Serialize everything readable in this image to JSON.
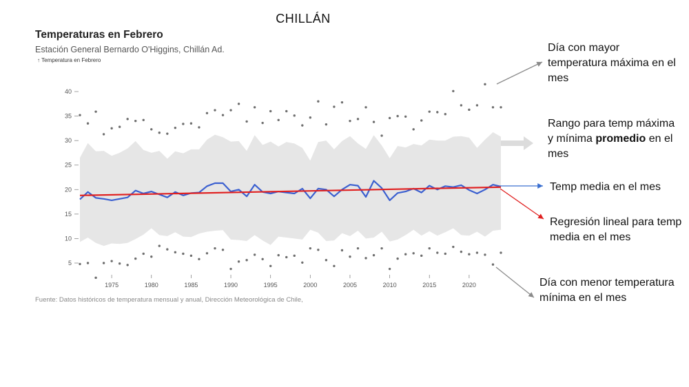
{
  "page": {
    "title": "CHILLÁN"
  },
  "chart_data": {
    "type": "line",
    "title": "Temperaturas en Febrero",
    "subtitle": "Estación General Bernardo O'Higgins, Chillán Ad.",
    "ylabel": "↑ Temperatura en Febrero",
    "source": "Fuente: Datos históricos de temperatura mensual y anual, Dirección Meteorológica de Chile,",
    "xlim": [
      1971,
      2024
    ],
    "ylim": [
      1,
      43
    ],
    "xticks": [
      1975,
      1980,
      1985,
      1990,
      1995,
      2000,
      2005,
      2010,
      2015,
      2020
    ],
    "yticks": [
      5,
      10,
      15,
      20,
      25,
      30,
      35,
      40
    ],
    "x": [
      1971,
      1972,
      1973,
      1974,
      1975,
      1976,
      1977,
      1978,
      1979,
      1980,
      1981,
      1982,
      1983,
      1984,
      1985,
      1986,
      1987,
      1988,
      1989,
      1990,
      1991,
      1992,
      1993,
      1994,
      1995,
      1996,
      1997,
      1998,
      1999,
      2000,
      2001,
      2002,
      2003,
      2004,
      2005,
      2006,
      2007,
      2008,
      2009,
      2010,
      2011,
      2012,
      2013,
      2014,
      2015,
      2016,
      2017,
      2018,
      2019,
      2020,
      2021,
      2022,
      2023,
      2024
    ],
    "series": [
      {
        "key": "mean",
        "color": "#3a5fd0",
        "values": [
          18.0,
          19.5,
          18.3,
          18.1,
          17.8,
          18.1,
          18.4,
          19.8,
          19.2,
          19.6,
          19.0,
          18.4,
          19.5,
          18.8,
          19.3,
          19.4,
          20.7,
          21.3,
          21.3,
          19.6,
          20.0,
          18.6,
          21.0,
          19.5,
          19.2,
          19.6,
          19.4,
          19.2,
          20.2,
          18.2,
          20.2,
          20.0,
          18.6,
          20.0,
          21.0,
          20.8,
          18.5,
          21.8,
          20.3,
          17.8,
          19.3,
          19.6,
          20.2,
          19.4,
          20.8,
          20.0,
          20.7,
          20.5,
          20.9,
          19.9,
          19.2,
          20.0,
          21.0,
          20.6
        ]
      },
      {
        "key": "max_day",
        "values": [
          35.2,
          33.5,
          35.9,
          31.3,
          32.5,
          32.8,
          34.4,
          34.0,
          34.2,
          32.3,
          31.6,
          31.4,
          32.6,
          33.4,
          33.5,
          32.7,
          35.6,
          36.2,
          35.2,
          36.2,
          37.5,
          33.9,
          36.8,
          33.6,
          36.0,
          34.2,
          36.0,
          35.1,
          33.1,
          34.7,
          38.0,
          33.3,
          36.9,
          37.8,
          34.0,
          34.4,
          36.8,
          33.8,
          31.0,
          34.6,
          35.0,
          34.9,
          32.3,
          34.1,
          35.9,
          35.8,
          35.4,
          40.1,
          37.2,
          36.3,
          37.2,
          41.5,
          36.8,
          36.8
        ]
      },
      {
        "key": "min_day",
        "values": [
          4.8,
          5.0,
          2.0,
          5.0,
          5.4,
          4.9,
          4.6,
          5.9,
          6.9,
          6.3,
          8.5,
          7.8,
          7.2,
          6.9,
          6.5,
          5.8,
          7.0,
          8.0,
          7.7,
          3.8,
          5.3,
          5.6,
          6.7,
          5.8,
          4.4,
          6.6,
          6.2,
          6.5,
          5.1,
          8.0,
          7.7,
          5.6,
          4.4,
          7.6,
          6.3,
          8.0,
          6.0,
          6.6,
          8.0,
          3.8,
          5.9,
          6.8,
          7.0,
          6.5,
          8.0,
          7.1,
          6.9,
          8.3,
          7.3,
          6.8,
          7.1,
          6.7,
          4.7,
          7.1
        ]
      },
      {
        "key": "avg_max",
        "values": [
          26.5,
          29.5,
          27.8,
          27.9,
          26.9,
          27.5,
          28.4,
          29.9,
          28.1,
          27.5,
          27.9,
          26.3,
          27.8,
          27.4,
          28.2,
          28.2,
          30.2,
          31.2,
          30.7,
          29.8,
          29.9,
          27.9,
          31.1,
          29.1,
          29.8,
          28.8,
          29.7,
          29.4,
          28.5,
          25.9,
          29.7,
          30.0,
          28.2,
          29.9,
          30.9,
          29.4,
          28.3,
          31.1,
          29.0,
          26.4,
          28.9,
          28.6,
          29.3,
          29.0,
          30.2,
          30.0,
          30.0,
          30.8,
          30.9,
          30.6,
          28.5,
          30.2,
          31.7,
          30.8
        ]
      },
      {
        "key": "avg_min",
        "values": [
          9.3,
          10.2,
          9.1,
          8.5,
          9.0,
          8.9,
          9.1,
          9.9,
          10.8,
          12.1,
          10.7,
          10.5,
          11.3,
          10.4,
          10.3,
          11.0,
          11.4,
          11.6,
          11.7,
          9.8,
          9.7,
          9.5,
          10.7,
          9.6,
          8.7,
          10.4,
          10.2,
          10.0,
          9.8,
          11.8,
          11.2,
          9.5,
          9.6,
          11.1,
          10.5,
          11.6,
          10.0,
          10.2,
          11.4,
          9.4,
          9.8,
          10.7,
          11.8,
          10.6,
          11.5,
          10.6,
          11.3,
          12.1,
          10.7,
          10.6,
          11.4,
          10.4,
          11.6,
          11.8
        ]
      },
      {
        "key": "regression",
        "color": "#e02020",
        "x": [
          1971,
          2024
        ],
        "values": [
          18.8,
          20.5
        ]
      }
    ]
  },
  "annotations": {
    "max": "Día con mayor temperatura máxima en el mes",
    "range_prefix": "Rango para temp máxima y mínima",
    "range_bold": "promedio",
    "range_suffix": "en el mes",
    "mean": "Temp media en el mes",
    "regression": "Regresión lineal para temp media en el mes",
    "min": "Día con menor temperatura mínima en el mes"
  }
}
